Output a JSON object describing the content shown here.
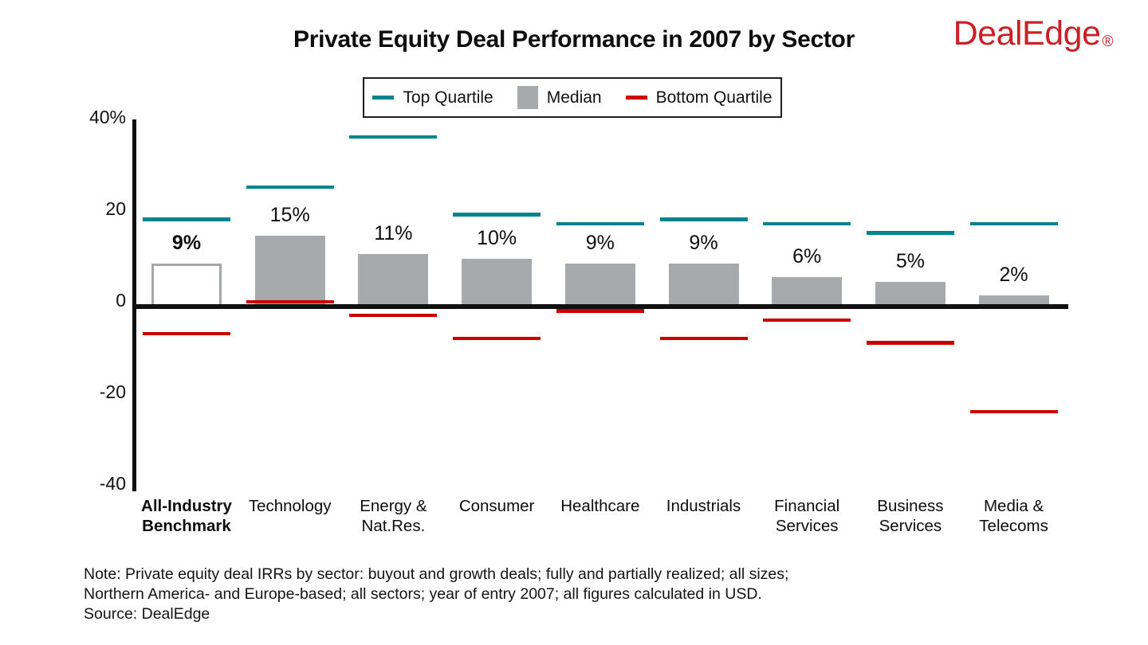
{
  "page": {
    "title": "Private Equity Deal Performance in 2007 by Sector",
    "logo_text": "DealEdge",
    "logo_registered_mark": "®",
    "logo_color": "#cb2026"
  },
  "legend": {
    "items": [
      {
        "label": "Top Quartile",
        "swatch": "line",
        "color": "#00858c"
      },
      {
        "label": "Median",
        "swatch": "square",
        "color": "#a6aaad"
      },
      {
        "label": "Bottom Quartile",
        "swatch": "line",
        "color": "#cc0000"
      }
    ]
  },
  "chart_data": {
    "type": "bar",
    "title": "Private Equity Deal Performance in 2007 by Sector",
    "unit": "percent IRR",
    "ylim": [
      -40,
      40
    ],
    "grid": false,
    "legend_position": "top-center",
    "yticks": [
      {
        "value": 40,
        "label": "40%"
      },
      {
        "value": 20,
        "label": "20"
      },
      {
        "value": 0,
        "label": "0"
      },
      {
        "value": -20,
        "label": "-20"
      },
      {
        "value": -40,
        "label": "-40"
      }
    ],
    "categories": [
      "All-Industry Benchmark",
      "Technology",
      "Energy & Nat.Res.",
      "Consumer",
      "Healthcare",
      "Industrials",
      "Financial Services",
      "Business Services",
      "Media & Telecoms"
    ],
    "benchmark_index": 0,
    "series": [
      {
        "name": "Top Quartile",
        "mark": "tick-line",
        "color": "#00858c",
        "values": [
          19,
          26,
          37,
          20,
          18,
          19,
          18,
          16,
          18
        ]
      },
      {
        "name": "Median",
        "mark": "bar",
        "color": "#a6aaad",
        "values": [
          9,
          15,
          11,
          10,
          9,
          9,
          6,
          5,
          2
        ],
        "labels": [
          "9%",
          "15%",
          "11%",
          "10%",
          "9%",
          "9%",
          "6%",
          "5%",
          "2%"
        ]
      },
      {
        "name": "Bottom Quartile",
        "mark": "tick-line",
        "color": "#cc0000",
        "values": [
          -6,
          1,
          -2,
          -7,
          -1,
          -7,
          -3,
          -8,
          -23
        ]
      }
    ]
  },
  "note": {
    "line1": "Note: Private equity deal IRRs by sector: buyout and growth deals; fully and partially realized; all sizes;",
    "line2": "Northern America- and Europe-based; all sectors; year of entry 2007; all figures calculated in USD.",
    "source": "Source: DealEdge"
  }
}
